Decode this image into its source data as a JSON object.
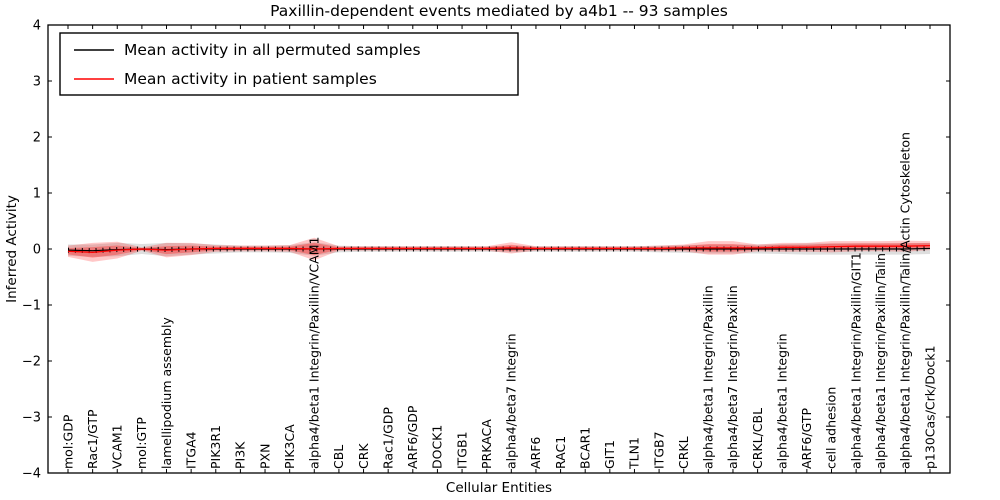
{
  "chart_data": {
    "type": "line",
    "title": "Paxillin-dependent events mediated by a4b1 -- 93 samples",
    "xlabel": "Cellular Entities",
    "ylabel": "Inferred Activity",
    "ylim": [
      -4,
      4
    ],
    "ytick_labels": [
      "4",
      "3",
      "2",
      "1",
      "0",
      "−1",
      "−2",
      "−3",
      "−4"
    ],
    "ytick_values": [
      4,
      3,
      2,
      1,
      0,
      -1,
      -2,
      -3,
      -4
    ],
    "grid": false,
    "legend_position": "upper left",
    "categories": [
      "mol:GDP",
      "Rac1/GTP",
      "VCAM1",
      "mol:GTP",
      "lamellipodium assembly",
      "ITGA4",
      "PIK3R1",
      "PI3K",
      "PXN",
      "PIK3CA",
      "alpha4/beta1 Integrin/Paxillin/VCAM1",
      "CBL",
      "CRK",
      "Rac1/GDP",
      "ARF6/GDP",
      "DOCK1",
      "ITGB1",
      "PRKACA",
      "alpha4/beta7 Integrin",
      "ARF6",
      "RAC1",
      "BCAR1",
      "GIT1",
      "TLN1",
      "ITGB7",
      "CRKL",
      "alpha4/beta1 Integrin/Paxillin",
      "alpha4/beta7 Integrin/Paxillin",
      "CRKL/CBL",
      "alpha4/beta1 Integrin",
      "ARF6/GTP",
      "cell adhesion",
      "alpha4/beta1 Integrin/Paxillin/GIT1",
      "alpha4/beta1 Integrin/Paxillin/Talin",
      "alpha4/beta1 Integrin/Paxillin/Talin/Actin Cytoskeleton",
      "p130Cas/Crk/Dock1"
    ],
    "series": [
      {
        "name": "Mean activity in all permuted samples",
        "color": "#000000",
        "band_color": "rgba(125,125,125,0.25)",
        "values": [
          -0.02,
          -0.03,
          -0.01,
          0.0,
          -0.01,
          0.0,
          0.0,
          0.0,
          0.0,
          0.0,
          0.0,
          0.0,
          0.0,
          0.0,
          0.0,
          0.0,
          0.0,
          0.0,
          0.0,
          0.0,
          0.0,
          0.0,
          0.0,
          0.0,
          0.0,
          0.0,
          0.0,
          0.0,
          0.0,
          0.0,
          0.0,
          0.0,
          0.0,
          0.0,
          0.0,
          0.01
        ],
        "band_std": [
          0.1,
          0.11,
          0.12,
          0.09,
          0.12,
          0.1,
          0.08,
          0.06,
          0.06,
          0.07,
          0.12,
          0.06,
          0.05,
          0.05,
          0.05,
          0.05,
          0.05,
          0.05,
          0.06,
          0.05,
          0.05,
          0.05,
          0.05,
          0.05,
          0.06,
          0.07,
          0.08,
          0.08,
          0.08,
          0.09,
          0.1,
          0.1,
          0.1,
          0.1,
          0.1,
          0.1
        ]
      },
      {
        "name": "Mean activity in patient samples",
        "color": "#ff0000",
        "band_color": "rgba(255,0,0,0.22)",
        "band_inner_color": "rgba(255,0,0,0.30)",
        "values": [
          -0.04,
          -0.06,
          -0.02,
          0.0,
          -0.02,
          0.0,
          0.01,
          0.01,
          0.01,
          0.01,
          0.0,
          0.01,
          0.01,
          0.01,
          0.01,
          0.01,
          0.01,
          0.01,
          0.02,
          0.01,
          0.01,
          0.01,
          0.01,
          0.01,
          0.01,
          0.02,
          0.02,
          0.02,
          0.02,
          0.03,
          0.03,
          0.04,
          0.05,
          0.05,
          0.05,
          0.06
        ],
        "band_std": [
          0.1,
          0.17,
          0.15,
          0.03,
          0.13,
          0.11,
          0.06,
          0.05,
          0.05,
          0.06,
          0.2,
          0.04,
          0.04,
          0.04,
          0.04,
          0.04,
          0.04,
          0.04,
          0.1,
          0.04,
          0.04,
          0.04,
          0.04,
          0.04,
          0.05,
          0.06,
          0.12,
          0.12,
          0.06,
          0.08,
          0.08,
          0.1,
          0.09,
          0.09,
          0.1,
          0.08
        ]
      }
    ]
  }
}
